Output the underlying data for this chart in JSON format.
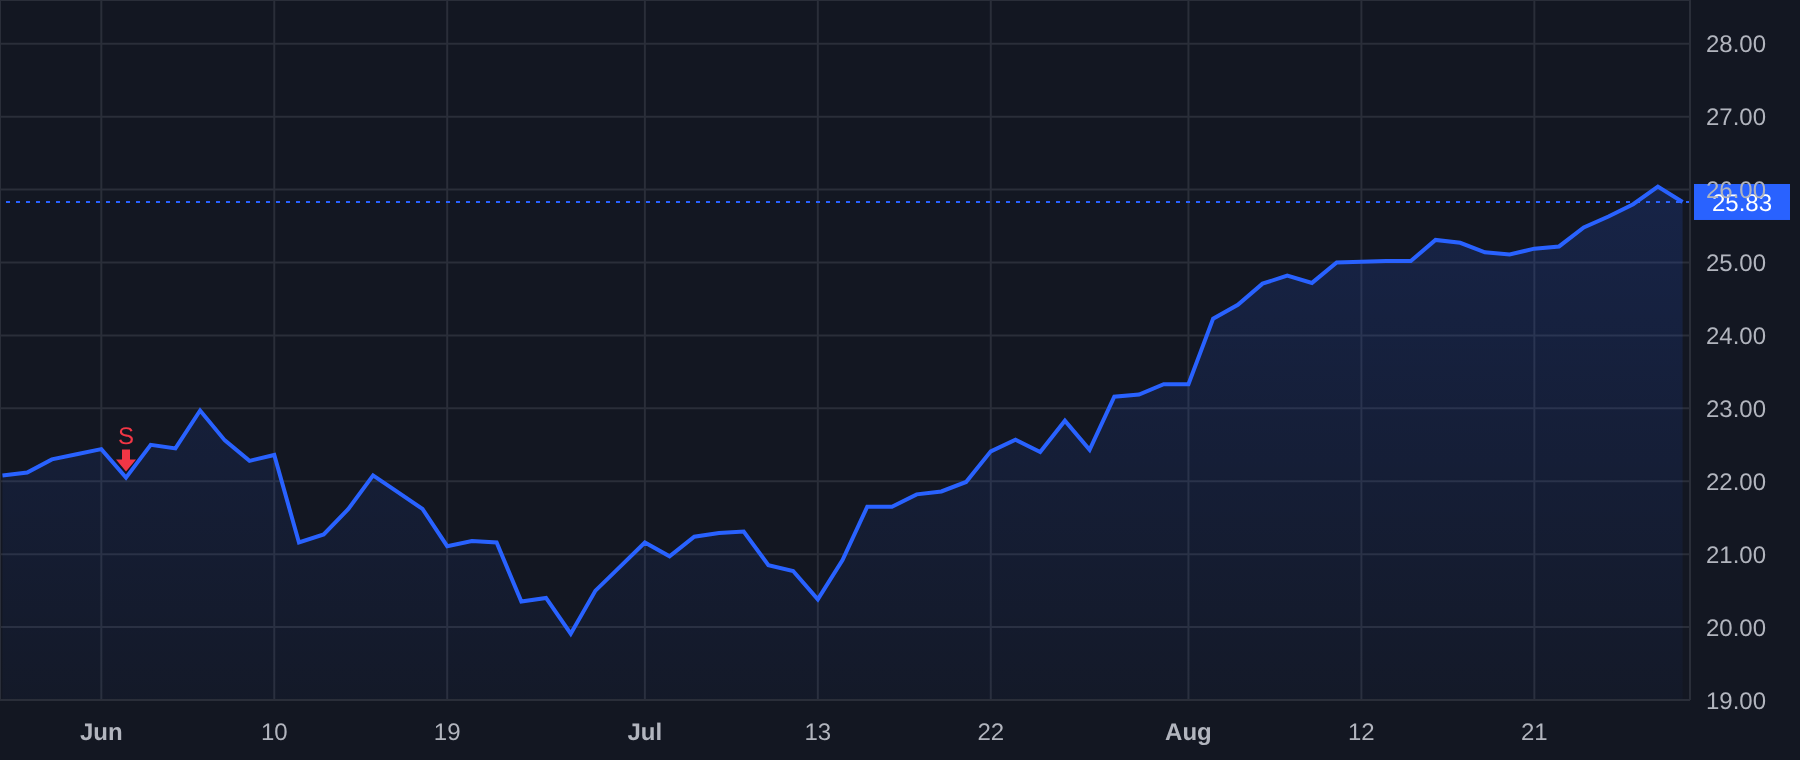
{
  "chart_data": {
    "type": "area",
    "categories": [
      null,
      null,
      null,
      null,
      "Jun",
      null,
      null,
      null,
      null,
      null,
      null,
      "10",
      null,
      null,
      null,
      null,
      null,
      null,
      "19",
      null,
      null,
      null,
      null,
      null,
      null,
      null,
      "Jul",
      null,
      null,
      null,
      null,
      null,
      null,
      "13",
      null,
      null,
      null,
      null,
      null,
      null,
      "22",
      null,
      null,
      null,
      null,
      null,
      null,
      null,
      "Aug",
      null,
      null,
      null,
      null,
      null,
      null,
      "12",
      null,
      null,
      null,
      null,
      null,
      null,
      "21",
      null,
      null,
      null,
      null,
      null,
      null
    ],
    "series": [
      {
        "color": "#2962ff",
        "values": [
          22.08,
          22.12,
          22.3,
          22.37,
          22.44,
          22.05,
          22.5,
          22.45,
          22.97,
          22.56,
          22.28,
          22.36,
          21.16,
          21.27,
          21.62,
          22.08,
          21.85,
          21.62,
          21.11,
          21.18,
          21.16,
          20.35,
          20.4,
          19.91,
          20.5,
          20.83,
          21.16,
          20.97,
          21.24,
          21.29,
          21.31,
          20.85,
          20.77,
          20.38,
          20.92,
          21.65,
          21.65,
          21.82,
          21.86,
          21.99,
          22.41,
          22.57,
          22.4,
          22.83,
          22.43,
          23.16,
          23.19,
          23.33,
          23.33,
          24.23,
          24.42,
          24.71,
          24.82,
          24.72,
          25.0,
          25.01,
          25.02,
          25.02,
          25.31,
          25.27,
          25.14,
          25.11,
          25.19,
          25.22,
          25.48,
          25.63,
          25.8,
          26.04,
          25.83
        ]
      }
    ],
    "ylim": [
      19,
      28.6
    ],
    "yticks": [
      {
        "value": 19,
        "label": "19.00"
      },
      {
        "value": 20,
        "label": "20.00"
      },
      {
        "value": 21,
        "label": "21.00"
      },
      {
        "value": 22,
        "label": "22.00"
      },
      {
        "value": 23,
        "label": "23.00"
      },
      {
        "value": 24,
        "label": "24.00"
      },
      {
        "value": 25,
        "label": "25.00"
      },
      {
        "value": 26,
        "label": "26.00"
      },
      {
        "value": 27,
        "label": "27.00"
      },
      {
        "value": 28,
        "label": "28.00"
      }
    ],
    "grid": true,
    "ref_lines": [
      {
        "axis": "y",
        "value": 25.83,
        "label": "25.83",
        "color": "#2962ff",
        "line_style": "dotted"
      }
    ],
    "annotations": [
      {
        "text": "S",
        "y": 22.05
      }
    ]
  }
}
